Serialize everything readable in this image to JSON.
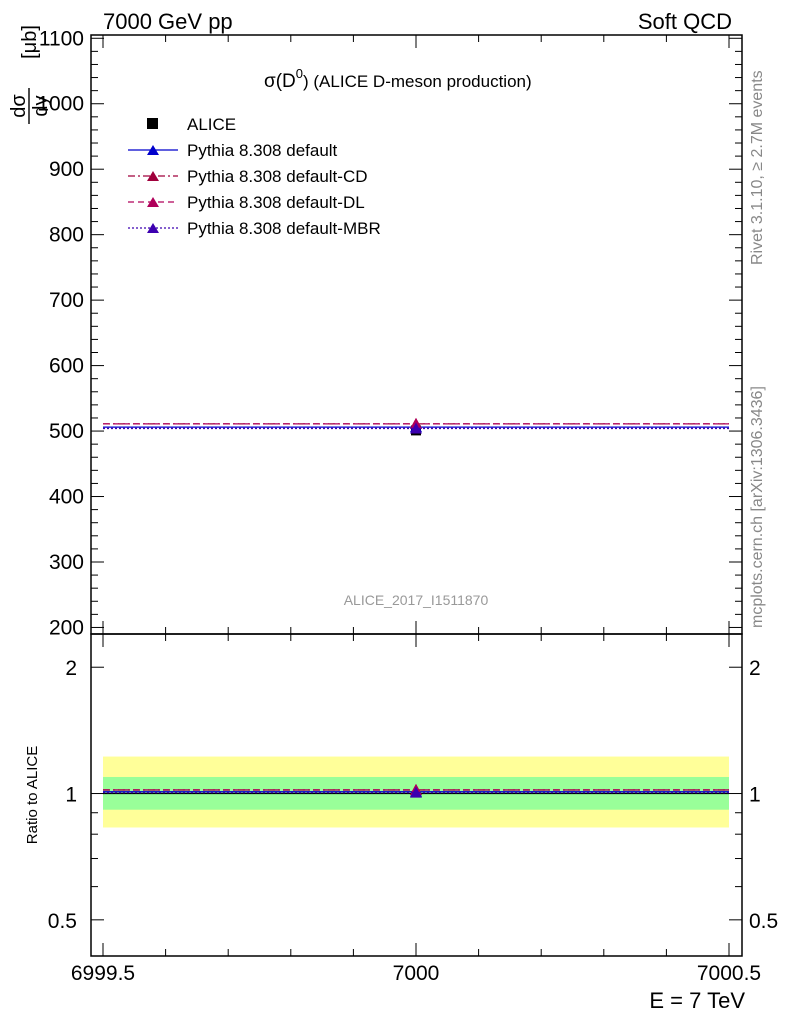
{
  "header": {
    "left": "7000 GeV pp",
    "right": "Soft QCD"
  },
  "side_labels": {
    "rivet": "Rivet 3.1.10, ≥ 2.7M events",
    "mcplots": "mcplots.cern.ch [arXiv:1306.3436]"
  },
  "watermark": "ALICE_2017_I1511870",
  "chart_data": [
    {
      "type": "scatter",
      "title_main": "σ(D",
      "title_sup": "0",
      "title_tail": ") (ALICE D-meson production)",
      "ylabel_num": "dσ",
      "ylabel_den": "dy",
      "ylabel_unit": "[μb]",
      "xlim": [
        6999.5,
        7000.5
      ],
      "ylim": [
        190,
        1105
      ],
      "yticks": [
        "200",
        "300",
        "400",
        "500",
        "600",
        "700",
        "800",
        "900",
        "1000",
        "1100"
      ],
      "yticks_values": [
        200,
        300,
        400,
        500,
        600,
        700,
        800,
        900,
        1000,
        1100
      ],
      "grid": false,
      "legend_position": "top-left",
      "series": [
        {
          "name": "ALICE",
          "x": [
            7000
          ],
          "y": [
            501
          ],
          "color": "#000000",
          "marker": "square",
          "style": "none"
        },
        {
          "name": "Pythia 8.308 default",
          "x": [
            7000
          ],
          "y": [
            506
          ],
          "color": "#0000cc",
          "marker": "triangle",
          "style": "solid"
        },
        {
          "name": "Pythia 8.308 default-CD",
          "x": [
            7000
          ],
          "y": [
            511
          ],
          "color": "#a0003c",
          "marker": "triangle",
          "style": "dashdot"
        },
        {
          "name": "Pythia 8.308 default-DL",
          "x": [
            7000
          ],
          "y": [
            511
          ],
          "color": "#b0005a",
          "marker": "triangle",
          "style": "dashed"
        },
        {
          "name": "Pythia 8.308 default-MBR",
          "x": [
            7000
          ],
          "y": [
            504
          ],
          "color": "#3c00b0",
          "marker": "triangle",
          "style": "dotted"
        }
      ]
    },
    {
      "type": "scatter",
      "ylabel": "Ratio to ALICE",
      "xlabel": "E = 7 TeV",
      "xlim": [
        6999.5,
        7000.5
      ],
      "xticks": [
        "6999.5",
        "7000",
        "7000.5"
      ],
      "xticks_values": [
        6999.5,
        7000,
        7000.5
      ],
      "ylim": [
        0.41,
        2.4
      ],
      "ylog": true,
      "yticks": [
        "0.5",
        "1",
        "2"
      ],
      "yticks_values": [
        0.5,
        1,
        2
      ],
      "bands": [
        {
          "lo": 0.83,
          "hi": 1.225,
          "color": "#ffff99"
        },
        {
          "lo": 0.915,
          "hi": 1.095,
          "color": "#99ff99"
        }
      ],
      "series": [
        {
          "name": "Pythia 8.308 default",
          "y": [
            1.01
          ],
          "color": "#0000cc",
          "style": "solid"
        },
        {
          "name": "Pythia 8.308 default-CD",
          "y": [
            1.02
          ],
          "color": "#a0003c",
          "style": "dashdot"
        },
        {
          "name": "Pythia 8.308 default-DL",
          "y": [
            1.02
          ],
          "color": "#b0005a",
          "style": "dashed"
        },
        {
          "name": "Pythia 8.308 default-MBR",
          "y": [
            1.005
          ],
          "color": "#3c00b0",
          "style": "dotted"
        }
      ]
    }
  ]
}
